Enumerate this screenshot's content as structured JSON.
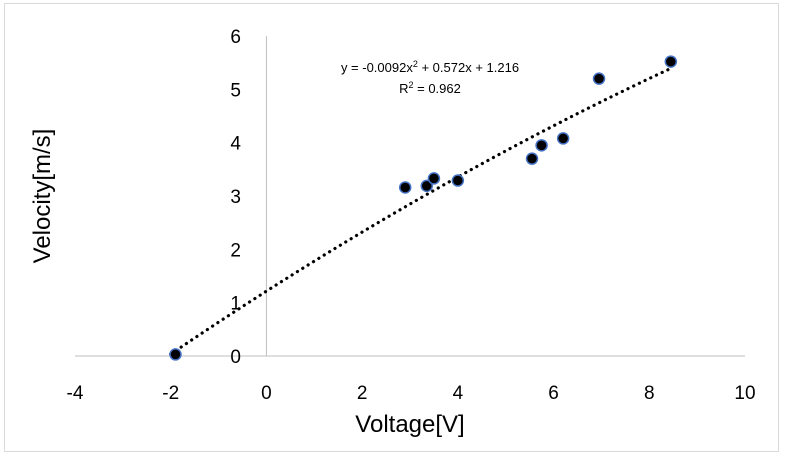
{
  "chart_data": {
    "type": "scatter",
    "xlabel": "Voltage[V]",
    "ylabel": "Velocity[m/s]",
    "xlim": [
      -4,
      10
    ],
    "ylim": [
      0,
      6
    ],
    "x_ticks": [
      "-4",
      "-2",
      "0",
      "2",
      "4",
      "6",
      "8",
      "10"
    ],
    "y_ticks": [
      "0",
      "1",
      "2",
      "3",
      "4",
      "5",
      "6"
    ],
    "grid": false,
    "series": [
      {
        "points": [
          {
            "x": -1.9,
            "y": 0.03
          },
          {
            "x": 2.9,
            "y": 3.16
          },
          {
            "x": 3.35,
            "y": 3.19
          },
          {
            "x": 3.5,
            "y": 3.33
          },
          {
            "x": 4.0,
            "y": 3.29
          },
          {
            "x": 5.55,
            "y": 3.7
          },
          {
            "x": 5.75,
            "y": 3.95
          },
          {
            "x": 6.2,
            "y": 4.08
          },
          {
            "x": 6.95,
            "y": 5.2
          },
          {
            "x": 8.45,
            "y": 5.52
          }
        ],
        "marker_color": "#000000",
        "marker_edge_color": "#4472c4"
      }
    ],
    "trendline": {
      "type": "polynomial",
      "coefficients": [
        -0.0092,
        0.572,
        1.216
      ],
      "x_range": [
        -2,
        8.4
      ],
      "style": "dotted",
      "color": "#000000"
    },
    "annotations": {
      "equation_prefix": "y = -0.0092x",
      "equation_sup1": "2",
      "equation_suffix": " + 0.572x + 1.216",
      "r2_prefix": "R",
      "r2_sup": "2",
      "r2_suffix": " = 0.962"
    }
  }
}
